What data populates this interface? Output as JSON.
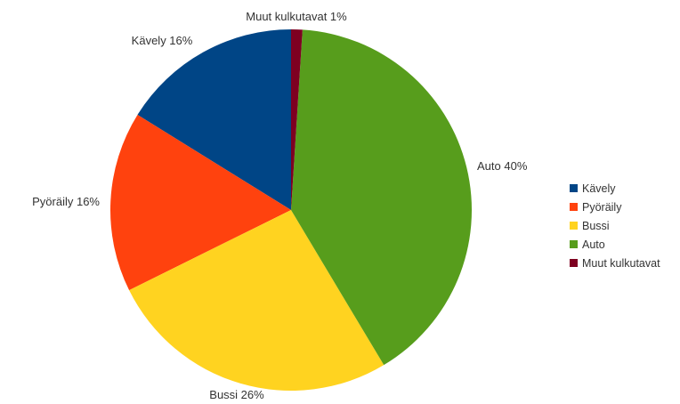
{
  "chart_data": {
    "type": "pie",
    "title": "",
    "unit": "%",
    "categories": [
      "Kävely",
      "Pyöräily",
      "Bussi",
      "Auto",
      "Muut kulkutavat"
    ],
    "values": [
      16,
      16,
      26,
      40,
      1
    ],
    "colors": [
      "#004586",
      "#ff420e",
      "#ffd320",
      "#579d1c",
      "#7e0021"
    ],
    "slice_labels": [
      "Kävely 16%",
      "Pyöräily 16%",
      "Bussi 26%",
      "Auto 40%",
      "Muut kulkutavat 1%"
    ],
    "legend": {
      "position": "right",
      "entries": [
        "Kävely",
        "Pyöräily",
        "Bussi",
        "Auto",
        "Muut kulkutavat"
      ]
    },
    "start_angle_deg": 0,
    "direction": "counterclockwise"
  }
}
